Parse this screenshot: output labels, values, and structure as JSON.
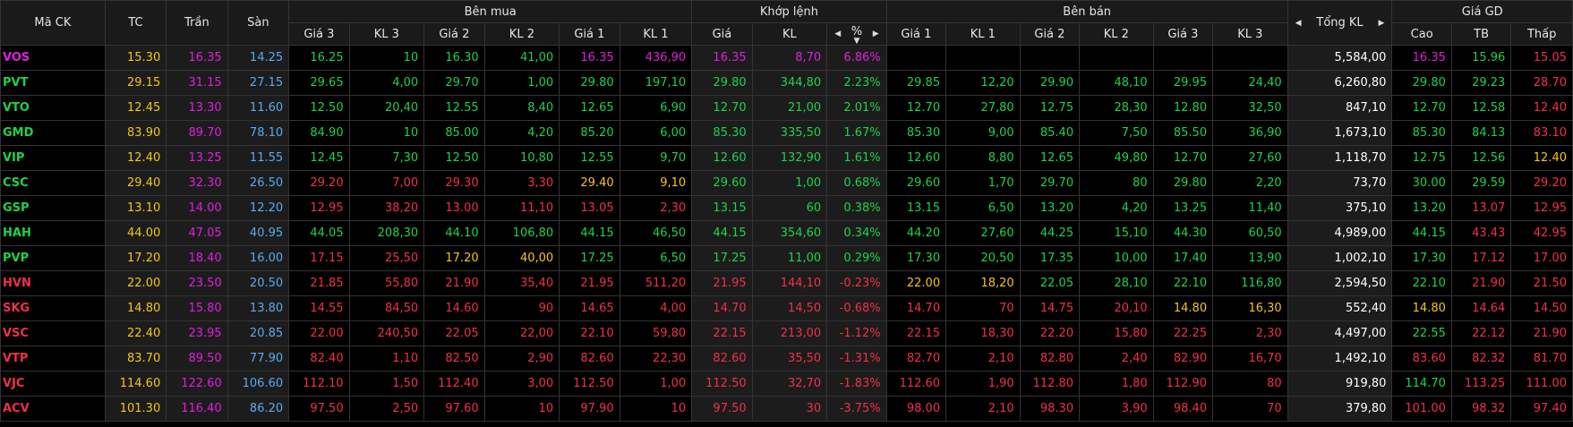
{
  "colors": {
    "ceiling": "#e01ee0",
    "floor": "#5aa9f0",
    "reference": "#f5c518",
    "up": "#1ed24a",
    "down": "#f0304a",
    "text": "#ffffff"
  },
  "headers": {
    "symbol": "Mã CK",
    "tc": "TC",
    "ceil": "Trần",
    "floor": "Sàn",
    "buy_group": "Bên mua",
    "match_group": "Khớp lệnh",
    "sell_group": "Bên bán",
    "total_vol": "Tổng KL",
    "price_group": "Giá GD",
    "buy": [
      "Giá 3",
      "KL 3",
      "Giá 2",
      "KL 2",
      "Giá 1",
      "KL 1"
    ],
    "match": [
      "Giá",
      "KL",
      "%"
    ],
    "sell": [
      "Giá 1",
      "KL 1",
      "Giá 2",
      "KL 2",
      "Giá 3",
      "KL 3"
    ],
    "price": [
      "Cao",
      "TB",
      "Thấp"
    ]
  },
  "icons": {
    "left": "caret-left-icon",
    "right": "caret-right-icon",
    "sort": "sort-desc-icon"
  },
  "rows": [
    {
      "sym": [
        "VOS",
        "c"
      ],
      "tc": "15.30",
      "ceil": "16.35",
      "floor": "14.25",
      "buy": [
        [
          "16.25",
          "u"
        ],
        [
          "10",
          "u"
        ],
        [
          "16.30",
          "u"
        ],
        [
          "41,00",
          "u"
        ],
        [
          "16.35",
          "c"
        ],
        [
          "436,90",
          "c"
        ]
      ],
      "match": [
        [
          "16.35",
          "c"
        ],
        [
          "8,70",
          "c"
        ],
        [
          "6.86%",
          "c"
        ]
      ],
      "sell": [
        [
          "",
          ""
        ],
        [
          "",
          ""
        ],
        [
          "",
          ""
        ],
        [
          "",
          ""
        ],
        [
          "",
          ""
        ],
        [
          "",
          ""
        ]
      ],
      "total": "5,584,00",
      "price": [
        [
          "16.35",
          "c"
        ],
        [
          "15.96",
          "u"
        ],
        [
          "15.05",
          "d"
        ]
      ]
    },
    {
      "sym": [
        "PVT",
        "u"
      ],
      "tc": "29.15",
      "ceil": "31.15",
      "floor": "27.15",
      "buy": [
        [
          "29.65",
          "u"
        ],
        [
          "4,00",
          "u"
        ],
        [
          "29.70",
          "u"
        ],
        [
          "1,00",
          "u"
        ],
        [
          "29.80",
          "u"
        ],
        [
          "197,10",
          "u"
        ]
      ],
      "match": [
        [
          "29.80",
          "u"
        ],
        [
          "344,80",
          "u"
        ],
        [
          "2.23%",
          "u"
        ]
      ],
      "sell": [
        [
          "29.85",
          "u"
        ],
        [
          "12,20",
          "u"
        ],
        [
          "29.90",
          "u"
        ],
        [
          "48,10",
          "u"
        ],
        [
          "29.95",
          "u"
        ],
        [
          "24,40",
          "u"
        ]
      ],
      "total": "6,260,80",
      "price": [
        [
          "29.80",
          "u"
        ],
        [
          "29.23",
          "u"
        ],
        [
          "28.70",
          "d"
        ]
      ]
    },
    {
      "sym": [
        "VTO",
        "u"
      ],
      "tc": "12.45",
      "ceil": "13.30",
      "floor": "11.60",
      "buy": [
        [
          "12.50",
          "u"
        ],
        [
          "20,40",
          "u"
        ],
        [
          "12.55",
          "u"
        ],
        [
          "8,40",
          "u"
        ],
        [
          "12.65",
          "u"
        ],
        [
          "6,90",
          "u"
        ]
      ],
      "match": [
        [
          "12.70",
          "u"
        ],
        [
          "21,00",
          "u"
        ],
        [
          "2.01%",
          "u"
        ]
      ],
      "sell": [
        [
          "12.70",
          "u"
        ],
        [
          "27,80",
          "u"
        ],
        [
          "12.75",
          "u"
        ],
        [
          "28,30",
          "u"
        ],
        [
          "12.80",
          "u"
        ],
        [
          "32,50",
          "u"
        ]
      ],
      "total": "847,10",
      "price": [
        [
          "12.70",
          "u"
        ],
        [
          "12.58",
          "u"
        ],
        [
          "12.40",
          "d"
        ]
      ]
    },
    {
      "sym": [
        "GMD",
        "u"
      ],
      "tc": "83.90",
      "ceil": "89.70",
      "floor": "78.10",
      "buy": [
        [
          "84.90",
          "u"
        ],
        [
          "10",
          "u"
        ],
        [
          "85.00",
          "u"
        ],
        [
          "4,20",
          "u"
        ],
        [
          "85.20",
          "u"
        ],
        [
          "6,00",
          "u"
        ]
      ],
      "match": [
        [
          "85.30",
          "u"
        ],
        [
          "335,50",
          "u"
        ],
        [
          "1.67%",
          "u"
        ]
      ],
      "sell": [
        [
          "85.30",
          "u"
        ],
        [
          "9,00",
          "u"
        ],
        [
          "85.40",
          "u"
        ],
        [
          "7,50",
          "u"
        ],
        [
          "85.50",
          "u"
        ],
        [
          "36,90",
          "u"
        ]
      ],
      "total": "1,673,10",
      "price": [
        [
          "85.30",
          "u"
        ],
        [
          "84.13",
          "u"
        ],
        [
          "83.10",
          "d"
        ]
      ]
    },
    {
      "sym": [
        "VIP",
        "u"
      ],
      "tc": "12.40",
      "ceil": "13.25",
      "floor": "11.55",
      "buy": [
        [
          "12.45",
          "u"
        ],
        [
          "7,30",
          "u"
        ],
        [
          "12.50",
          "u"
        ],
        [
          "10,80",
          "u"
        ],
        [
          "12.55",
          "u"
        ],
        [
          "9,70",
          "u"
        ]
      ],
      "match": [
        [
          "12.60",
          "u"
        ],
        [
          "132,90",
          "u"
        ],
        [
          "1.61%",
          "u"
        ]
      ],
      "sell": [
        [
          "12.60",
          "u"
        ],
        [
          "8,80",
          "u"
        ],
        [
          "12.65",
          "u"
        ],
        [
          "49,80",
          "u"
        ],
        [
          "12.70",
          "u"
        ],
        [
          "27,60",
          "u"
        ]
      ],
      "total": "1,118,70",
      "price": [
        [
          "12.75",
          "u"
        ],
        [
          "12.56",
          "u"
        ],
        [
          "12.40",
          "r"
        ]
      ]
    },
    {
      "sym": [
        "CSC",
        "u"
      ],
      "tc": "29.40",
      "ceil": "32.30",
      "floor": "26.50",
      "buy": [
        [
          "29.20",
          "d"
        ],
        [
          "7,00",
          "d"
        ],
        [
          "29.30",
          "d"
        ],
        [
          "3,30",
          "d"
        ],
        [
          "29.40",
          "r"
        ],
        [
          "9,10",
          "r"
        ]
      ],
      "match": [
        [
          "29.60",
          "u"
        ],
        [
          "1,00",
          "u"
        ],
        [
          "0.68%",
          "u"
        ]
      ],
      "sell": [
        [
          "29.60",
          "u"
        ],
        [
          "1,70",
          "u"
        ],
        [
          "29.70",
          "u"
        ],
        [
          "80",
          "u"
        ],
        [
          "29.80",
          "u"
        ],
        [
          "2,20",
          "u"
        ]
      ],
      "total": "73,70",
      "price": [
        [
          "30.00",
          "u"
        ],
        [
          "29.59",
          "u"
        ],
        [
          "29.20",
          "d"
        ]
      ]
    },
    {
      "sym": [
        "GSP",
        "u"
      ],
      "tc": "13.10",
      "ceil": "14.00",
      "floor": "12.20",
      "buy": [
        [
          "12.95",
          "d"
        ],
        [
          "38,20",
          "d"
        ],
        [
          "13.00",
          "d"
        ],
        [
          "11,10",
          "d"
        ],
        [
          "13.05",
          "d"
        ],
        [
          "2,30",
          "d"
        ]
      ],
      "match": [
        [
          "13.15",
          "u"
        ],
        [
          "60",
          "u"
        ],
        [
          "0.38%",
          "u"
        ]
      ],
      "sell": [
        [
          "13.15",
          "u"
        ],
        [
          "6,50",
          "u"
        ],
        [
          "13.20",
          "u"
        ],
        [
          "4,20",
          "u"
        ],
        [
          "13.25",
          "u"
        ],
        [
          "11,40",
          "u"
        ]
      ],
      "total": "375,10",
      "price": [
        [
          "13.20",
          "u"
        ],
        [
          "13.07",
          "d"
        ],
        [
          "12.95",
          "d"
        ]
      ]
    },
    {
      "sym": [
        "HAH",
        "u"
      ],
      "tc": "44.00",
      "ceil": "47.05",
      "floor": "40.95",
      "buy": [
        [
          "44.05",
          "u"
        ],
        [
          "208,30",
          "u"
        ],
        [
          "44.10",
          "u"
        ],
        [
          "106,80",
          "u"
        ],
        [
          "44.15",
          "u"
        ],
        [
          "46,50",
          "u"
        ]
      ],
      "match": [
        [
          "44.15",
          "u"
        ],
        [
          "354,60",
          "u"
        ],
        [
          "0.34%",
          "u"
        ]
      ],
      "sell": [
        [
          "44.20",
          "u"
        ],
        [
          "27,60",
          "u"
        ],
        [
          "44.25",
          "u"
        ],
        [
          "15,10",
          "u"
        ],
        [
          "44.30",
          "u"
        ],
        [
          "60,50",
          "u"
        ]
      ],
      "total": "4,989,00",
      "price": [
        [
          "44.15",
          "u"
        ],
        [
          "43.43",
          "d"
        ],
        [
          "42.95",
          "d"
        ]
      ]
    },
    {
      "sym": [
        "PVP",
        "u"
      ],
      "tc": "17.20",
      "ceil": "18.40",
      "floor": "16.00",
      "buy": [
        [
          "17.15",
          "d"
        ],
        [
          "25,50",
          "d"
        ],
        [
          "17.20",
          "r"
        ],
        [
          "40,00",
          "r"
        ],
        [
          "17.25",
          "u"
        ],
        [
          "6,50",
          "u"
        ]
      ],
      "match": [
        [
          "17.25",
          "u"
        ],
        [
          "11,00",
          "u"
        ],
        [
          "0.29%",
          "u"
        ]
      ],
      "sell": [
        [
          "17.30",
          "u"
        ],
        [
          "20,50",
          "u"
        ],
        [
          "17.35",
          "u"
        ],
        [
          "10,00",
          "u"
        ],
        [
          "17.40",
          "u"
        ],
        [
          "13,90",
          "u"
        ]
      ],
      "total": "1,002,10",
      "price": [
        [
          "17.30",
          "u"
        ],
        [
          "17.12",
          "d"
        ],
        [
          "17.00",
          "d"
        ]
      ]
    },
    {
      "sym": [
        "HVN",
        "d"
      ],
      "tc": "22.00",
      "ceil": "23.50",
      "floor": "20.50",
      "buy": [
        [
          "21.85",
          "d"
        ],
        [
          "55,80",
          "d"
        ],
        [
          "21.90",
          "d"
        ],
        [
          "35,40",
          "d"
        ],
        [
          "21.95",
          "d"
        ],
        [
          "511,20",
          "d"
        ]
      ],
      "match": [
        [
          "21.95",
          "d"
        ],
        [
          "144,10",
          "d"
        ],
        [
          "-0.23%",
          "d"
        ]
      ],
      "sell": [
        [
          "22.00",
          "r"
        ],
        [
          "18,20",
          "r"
        ],
        [
          "22.05",
          "u"
        ],
        [
          "28,10",
          "u"
        ],
        [
          "22.10",
          "u"
        ],
        [
          "116,80",
          "u"
        ]
      ],
      "total": "2,594,50",
      "price": [
        [
          "22.10",
          "u"
        ],
        [
          "21.90",
          "d"
        ],
        [
          "21.50",
          "d"
        ]
      ]
    },
    {
      "sym": [
        "SKG",
        "d"
      ],
      "tc": "14.80",
      "ceil": "15.80",
      "floor": "13.80",
      "buy": [
        [
          "14.55",
          "d"
        ],
        [
          "84,50",
          "d"
        ],
        [
          "14.60",
          "d"
        ],
        [
          "90",
          "d"
        ],
        [
          "14.65",
          "d"
        ],
        [
          "4,00",
          "d"
        ]
      ],
      "match": [
        [
          "14.70",
          "d"
        ],
        [
          "14,50",
          "d"
        ],
        [
          "-0.68%",
          "d"
        ]
      ],
      "sell": [
        [
          "14.70",
          "d"
        ],
        [
          "70",
          "d"
        ],
        [
          "14.75",
          "d"
        ],
        [
          "20,10",
          "d"
        ],
        [
          "14.80",
          "r"
        ],
        [
          "16,30",
          "r"
        ]
      ],
      "total": "552,40",
      "price": [
        [
          "14.80",
          "r"
        ],
        [
          "14.64",
          "d"
        ],
        [
          "14.50",
          "d"
        ]
      ]
    },
    {
      "sym": [
        "VSC",
        "d"
      ],
      "tc": "22.40",
      "ceil": "23.95",
      "floor": "20.85",
      "buy": [
        [
          "22.00",
          "d"
        ],
        [
          "240,50",
          "d"
        ],
        [
          "22.05",
          "d"
        ],
        [
          "22,00",
          "d"
        ],
        [
          "22.10",
          "d"
        ],
        [
          "59,80",
          "d"
        ]
      ],
      "match": [
        [
          "22.15",
          "d"
        ],
        [
          "213,00",
          "d"
        ],
        [
          "-1.12%",
          "d"
        ]
      ],
      "sell": [
        [
          "22.15",
          "d"
        ],
        [
          "18,30",
          "d"
        ],
        [
          "22.20",
          "d"
        ],
        [
          "15,80",
          "d"
        ],
        [
          "22.25",
          "d"
        ],
        [
          "2,30",
          "d"
        ]
      ],
      "total": "4,497,00",
      "price": [
        [
          "22.55",
          "u"
        ],
        [
          "22.12",
          "d"
        ],
        [
          "21.90",
          "d"
        ]
      ]
    },
    {
      "sym": [
        "VTP",
        "d"
      ],
      "tc": "83.70",
      "ceil": "89.50",
      "floor": "77.90",
      "buy": [
        [
          "82.40",
          "d"
        ],
        [
          "1,10",
          "d"
        ],
        [
          "82.50",
          "d"
        ],
        [
          "2,90",
          "d"
        ],
        [
          "82.60",
          "d"
        ],
        [
          "22,30",
          "d"
        ]
      ],
      "match": [
        [
          "82.60",
          "d"
        ],
        [
          "35,50",
          "d"
        ],
        [
          "-1.31%",
          "d"
        ]
      ],
      "sell": [
        [
          "82.70",
          "d"
        ],
        [
          "2,10",
          "d"
        ],
        [
          "82.80",
          "d"
        ],
        [
          "2,40",
          "d"
        ],
        [
          "82.90",
          "d"
        ],
        [
          "16,70",
          "d"
        ]
      ],
      "total": "1,492,10",
      "price": [
        [
          "83.60",
          "d"
        ],
        [
          "82.32",
          "d"
        ],
        [
          "81.70",
          "d"
        ]
      ]
    },
    {
      "sym": [
        "VJC",
        "d"
      ],
      "tc": "114.60",
      "ceil": "122.60",
      "floor": "106.60",
      "buy": [
        [
          "112.10",
          "d"
        ],
        [
          "1,50",
          "d"
        ],
        [
          "112.40",
          "d"
        ],
        [
          "3,00",
          "d"
        ],
        [
          "112.50",
          "d"
        ],
        [
          "1,00",
          "d"
        ]
      ],
      "match": [
        [
          "112.50",
          "d"
        ],
        [
          "32,70",
          "d"
        ],
        [
          "-1.83%",
          "d"
        ]
      ],
      "sell": [
        [
          "112.60",
          "d"
        ],
        [
          "1,90",
          "d"
        ],
        [
          "112.80",
          "d"
        ],
        [
          "1,80",
          "d"
        ],
        [
          "112.90",
          "d"
        ],
        [
          "80",
          "d"
        ]
      ],
      "total": "919,80",
      "price": [
        [
          "114.70",
          "u"
        ],
        [
          "113.25",
          "d"
        ],
        [
          "111.00",
          "d"
        ]
      ]
    },
    {
      "sym": [
        "ACV",
        "d"
      ],
      "tc": "101.30",
      "ceil": "116.40",
      "floor": "86.20",
      "buy": [
        [
          "97.50",
          "d"
        ],
        [
          "2,50",
          "d"
        ],
        [
          "97.60",
          "d"
        ],
        [
          "10",
          "d"
        ],
        [
          "97.90",
          "d"
        ],
        [
          "10",
          "d"
        ]
      ],
      "match": [
        [
          "97.50",
          "d"
        ],
        [
          "30",
          "d"
        ],
        [
          "-3.75%",
          "d"
        ]
      ],
      "sell": [
        [
          "98.00",
          "d"
        ],
        [
          "2,10",
          "d"
        ],
        [
          "98.30",
          "d"
        ],
        [
          "3,90",
          "d"
        ],
        [
          "98.40",
          "d"
        ],
        [
          "70",
          "d"
        ]
      ],
      "total": "379,80",
      "price": [
        [
          "101.00",
          "d"
        ],
        [
          "98.32",
          "d"
        ],
        [
          "97.40",
          "d"
        ]
      ]
    }
  ]
}
